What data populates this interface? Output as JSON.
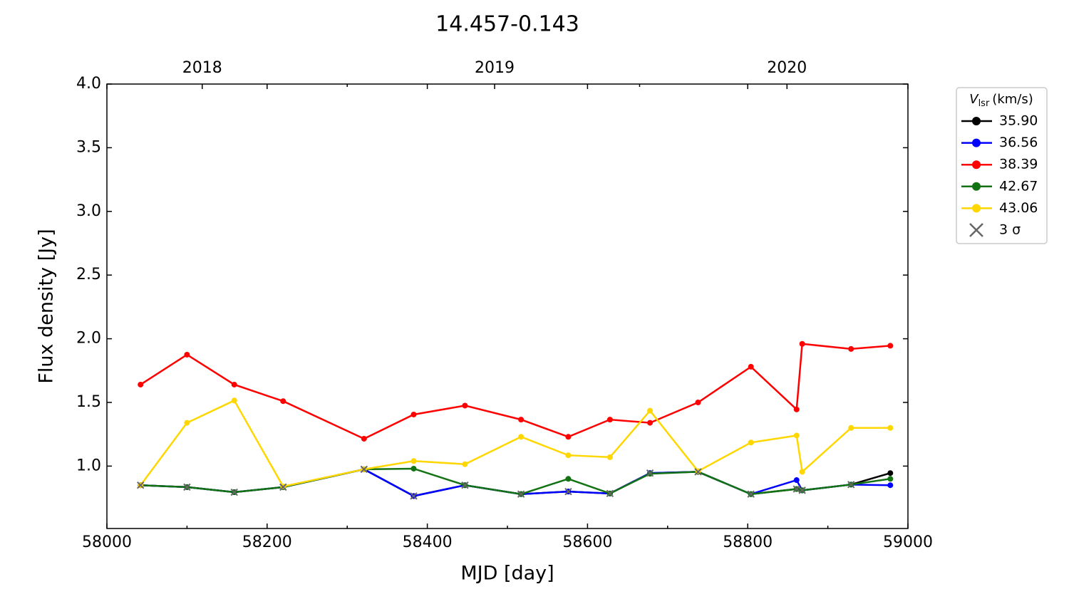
{
  "chart_data": {
    "type": "line",
    "title": "14.457-0.143",
    "x_label": "MJD [day]",
    "y_label": "Flux density [Jy]",
    "x": [
      58042,
      58100,
      58159,
      58220,
      58321,
      58383,
      58447,
      58517,
      58576,
      58628,
      58678,
      58738,
      58804,
      58861,
      58868,
      58929,
      58978
    ],
    "series": [
      {
        "name": "35.90",
        "color": "#000000",
        "values": [
          0.85,
          0.835,
          0.795,
          0.835,
          0.975,
          0.765,
          0.85,
          0.78,
          0.8,
          0.785,
          0.945,
          0.955,
          0.78,
          0.82,
          0.81,
          0.855,
          0.945
        ]
      },
      {
        "name": "36.56",
        "color": "#0000ff",
        "values": [
          0.85,
          0.835,
          0.795,
          0.835,
          0.975,
          0.765,
          0.85,
          0.78,
          0.8,
          0.785,
          0.945,
          0.955,
          0.78,
          0.89,
          0.81,
          0.855,
          0.85
        ]
      },
      {
        "name": "38.39",
        "color": "#ff0000",
        "values": [
          1.64,
          1.875,
          1.64,
          1.51,
          1.215,
          1.405,
          1.475,
          1.365,
          1.23,
          1.365,
          1.34,
          1.5,
          1.78,
          1.445,
          1.96,
          1.92,
          1.945
        ]
      },
      {
        "name": "42.67",
        "color": "#137313",
        "values": [
          0.85,
          0.835,
          0.795,
          0.835,
          0.975,
          0.98,
          0.85,
          0.78,
          0.9,
          0.785,
          0.94,
          0.955,
          0.78,
          0.82,
          0.81,
          0.855,
          0.9
        ]
      },
      {
        "name": "43.06",
        "color": "#ffd700",
        "values": [
          0.85,
          1.34,
          1.515,
          0.84,
          0.975,
          1.04,
          1.015,
          1.23,
          1.085,
          1.07,
          1.435,
          0.96,
          1.185,
          1.24,
          0.955,
          1.3,
          1.3
        ]
      }
    ],
    "upper_limits": {
      "name": "3 σ",
      "color": "#666666",
      "x": [
        58042,
        58100,
        58159,
        58220,
        58321,
        58383,
        58447,
        58517,
        58576,
        58628,
        58678,
        58738,
        58804,
        58861,
        58868,
        58929
      ],
      "values": [
        0.85,
        0.835,
        0.795,
        0.835,
        0.975,
        0.765,
        0.85,
        0.78,
        0.8,
        0.785,
        0.945,
        0.955,
        0.78,
        0.82,
        0.81,
        0.855
      ]
    },
    "legend_title": {
      "symbol": "V",
      "subscript": "lsr",
      "unit": "(km/s)"
    },
    "legend_position": "outside right",
    "xlim": [
      58000,
      59000
    ],
    "xticks": [
      58000,
      58200,
      58400,
      58600,
      58800,
      59000
    ],
    "xminor": [
      58100,
      58300,
      58500,
      58700,
      58900
    ],
    "x2ticks": [
      {
        "value": 58119,
        "label": "2018"
      },
      {
        "value": 58484,
        "label": "2019"
      },
      {
        "value": 58849,
        "label": "2020"
      }
    ],
    "x2minor": [
      58300,
      58665
    ],
    "ylim": [
      0.51,
      4.0
    ],
    "yticks": [
      {
        "value": 1.0,
        "label": "1.0"
      },
      1.5,
      {
        "value": 2.0,
        "label": "2.0"
      },
      2.5,
      {
        "value": 3.0,
        "label": "3.0"
      },
      3.5,
      {
        "value": 4.0,
        "label": "4.0"
      }
    ]
  }
}
